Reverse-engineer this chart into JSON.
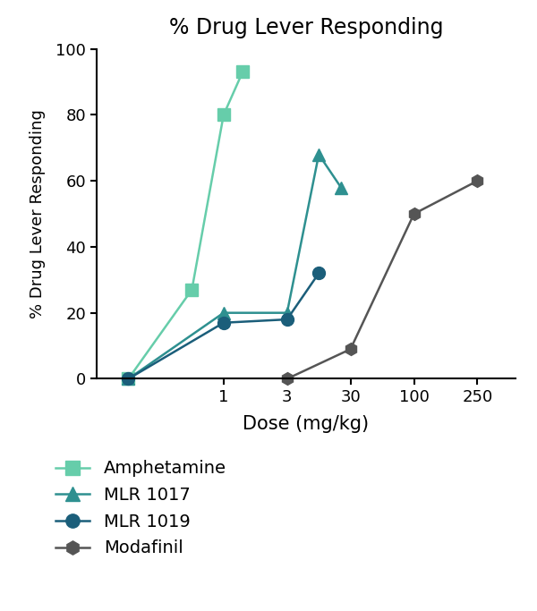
{
  "title": "% Drug Lever Responding",
  "xlabel": "Dose (mg/kg)",
  "ylabel": "% Drug Lever Responding",
  "ylim": [
    0,
    100
  ],
  "xtick_labels": [
    "1",
    "3",
    "30",
    "100",
    "250"
  ],
  "xtick_positions": [
    2,
    3,
    4,
    5,
    6
  ],
  "series": [
    {
      "name": "Amphetamine",
      "color": "#66CDAA",
      "marker": "s",
      "x": [
        0.5,
        1.5,
        2.0,
        2.3
      ],
      "y": [
        0,
        27,
        80,
        93
      ]
    },
    {
      "name": "MLR 1017",
      "color": "#2E9090",
      "marker": "^",
      "x": [
        0.5,
        2.0,
        3.0,
        3.5,
        3.85
      ],
      "y": [
        0,
        20,
        20,
        68,
        58
      ]
    },
    {
      "name": "MLR 1019",
      "color": "#1B5E7A",
      "marker": "o",
      "x": [
        0.5,
        2.0,
        3.0,
        3.5
      ],
      "y": [
        0,
        17,
        18,
        32
      ]
    },
    {
      "name": "Modafinil",
      "color": "#555555",
      "marker": "h",
      "x": [
        3.0,
        4.0,
        5.0,
        6.0
      ],
      "y": [
        0,
        9,
        50,
        60
      ]
    }
  ],
  "background_color": "#ffffff",
  "linewidth": 1.8,
  "markersize": 10
}
